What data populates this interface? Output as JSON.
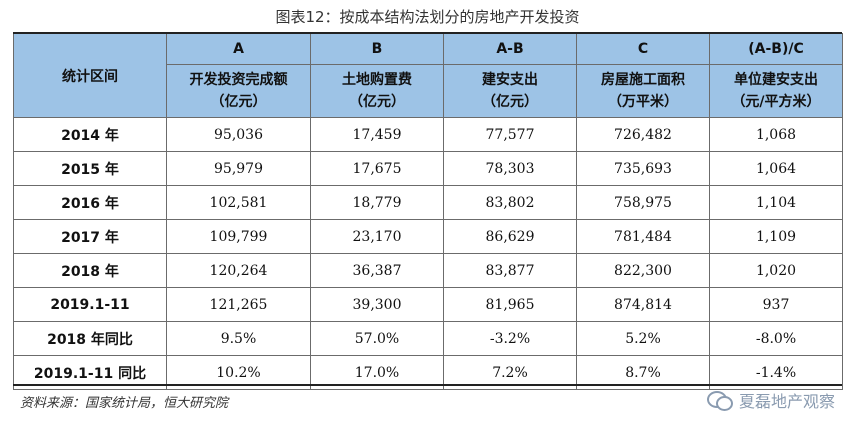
{
  "caption": "图表12：按成本结构法划分的房地产开发投资",
  "table": {
    "corner_label": "统计区间",
    "columns": [
      {
        "code": "A",
        "name": "开发投资完成额",
        "unit": "（亿元）"
      },
      {
        "code": "B",
        "name": "土地购置费",
        "unit": "（亿元）"
      },
      {
        "code": "A-B",
        "name": "建安支出",
        "unit": "（亿元）"
      },
      {
        "code": "C",
        "name": "房屋施工面积",
        "unit": "（万平米）"
      },
      {
        "code": "(A-B)/C",
        "name": "单位建安支出",
        "unit": "（元/平方米）"
      }
    ],
    "rows": [
      {
        "label": "2014 年",
        "values": [
          "95,036",
          "17,459",
          "77,577",
          "726,482",
          "1,068"
        ]
      },
      {
        "label": "2015 年",
        "values": [
          "95,979",
          "17,675",
          "78,303",
          "735,693",
          "1,064"
        ]
      },
      {
        "label": "2016 年",
        "values": [
          "102,581",
          "18,779",
          "83,802",
          "758,975",
          "1,104"
        ]
      },
      {
        "label": "2017 年",
        "values": [
          "109,799",
          "23,170",
          "86,629",
          "781,484",
          "1,109"
        ]
      },
      {
        "label": "2018 年",
        "values": [
          "120,264",
          "36,387",
          "83,877",
          "822,300",
          "1,020"
        ]
      },
      {
        "label": "2019.1-11",
        "values": [
          "121,265",
          "39,300",
          "81,965",
          "874,814",
          "937"
        ]
      },
      {
        "label": "2018 年同比",
        "values": [
          "9.5%",
          "57.0%",
          "-3.2%",
          "5.2%",
          "-8.0%"
        ]
      },
      {
        "label": "2019.1-11 同比",
        "values": [
          "10.2%",
          "17.0%",
          "7.2%",
          "8.7%",
          "-1.4%"
        ]
      }
    ]
  },
  "source": "资料来源：国家统计局，恒大研究院",
  "watermark": "夏磊地产观察",
  "colors": {
    "header_bg": "#9dc3e6",
    "border": "#6b6b6b"
  }
}
